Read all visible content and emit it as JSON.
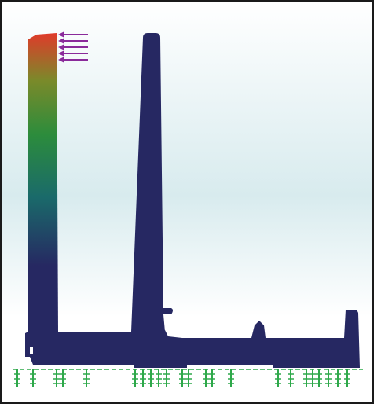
{
  "viewport": {
    "background_top": "#ffffff",
    "background_mid": "#d8ebee",
    "background_bottom": "#ffffff",
    "border_color": "#1a1a1a"
  },
  "model": {
    "body_color": "#262862",
    "contour_colors": [
      "#e03a2a",
      "#7a8a2a",
      "#2c8c3c",
      "#1a6a6a",
      "#262862"
    ]
  },
  "loads": {
    "arrow_color": "#8a2a9a",
    "arrow_count": 5
  },
  "supports": {
    "color": "#2ea84a",
    "icon": "fixed-support-icon"
  }
}
